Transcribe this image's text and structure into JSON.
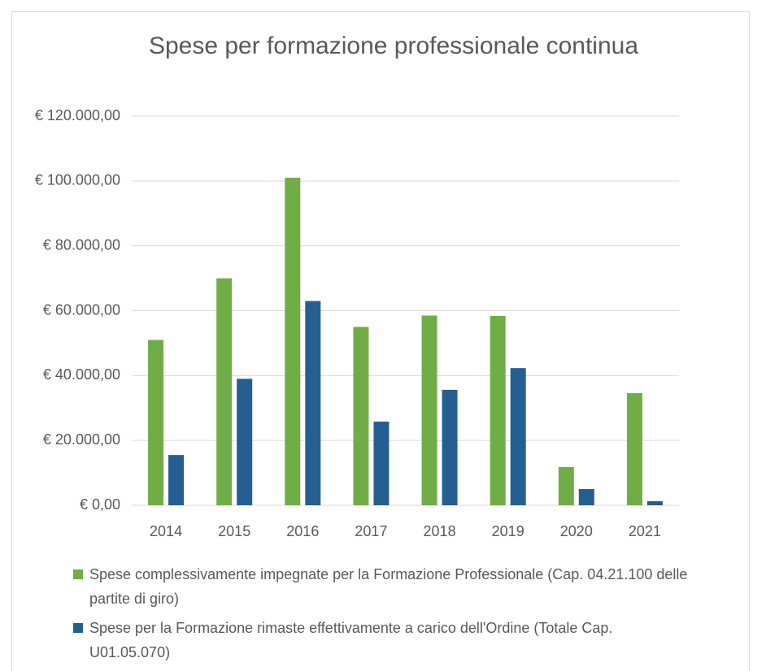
{
  "chart_data": {
    "type": "bar",
    "title": "Spese per formazione professionale continua",
    "categories": [
      "2014",
      "2015",
      "2016",
      "2017",
      "2018",
      "2019",
      "2020",
      "2021"
    ],
    "series": [
      {
        "name": "Spese complessivamente impegnate per la Formazione Professionale (Cap. 04.21.100 delle partite di giro)",
        "color": "#70ad47",
        "values": [
          51000,
          70000,
          101000,
          55000,
          58500,
          58400,
          11800,
          34600
        ]
      },
      {
        "name": "Spese per la Formazione rimaste effettivamente a carico dell'Ordine (Totale Cap. U01.05.070)",
        "color": "#255e91",
        "values": [
          15500,
          39000,
          63000,
          25800,
          35600,
          42300,
          5000,
          1250
        ]
      }
    ],
    "ylim": [
      0,
      120000
    ],
    "yticks": [
      {
        "value": 0,
        "label": "€ 0,00"
      },
      {
        "value": 20000,
        "label": "€ 20.000,00"
      },
      {
        "value": 40000,
        "label": "€ 40.000,00"
      },
      {
        "value": 60000,
        "label": "€ 60.000,00"
      },
      {
        "value": 80000,
        "label": "€ 80.000,00"
      },
      {
        "value": 100000,
        "label": "€ 100.000,00"
      },
      {
        "value": 120000,
        "label": "€ 120.000,00"
      }
    ],
    "grid": true,
    "legend": "bottom"
  }
}
